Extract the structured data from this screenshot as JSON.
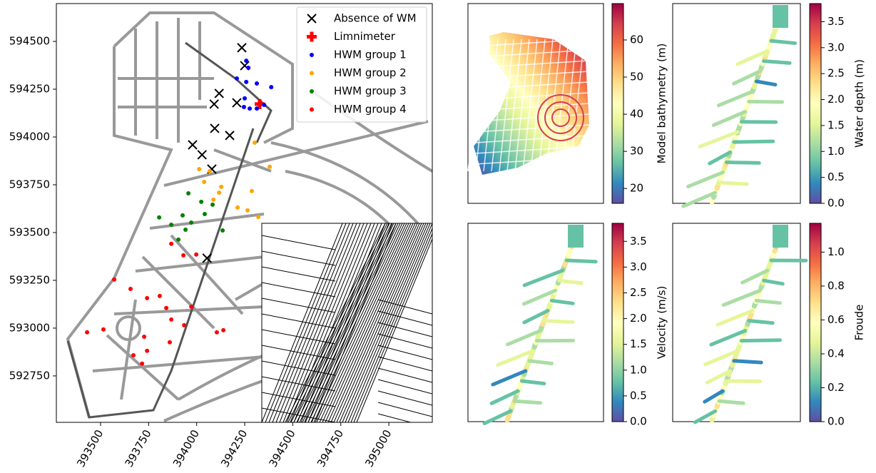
{
  "chart_data": [
    {
      "type": "scatter",
      "legend": "upper right",
      "xlim": [
        393270,
        395226
      ],
      "ylim": [
        592507,
        594698
      ],
      "xticks": [
        393500,
        393750,
        394000,
        394250,
        394500,
        394750,
        395000
      ],
      "yticks": [
        592750,
        593000,
        593250,
        593500,
        593750,
        594000,
        594250,
        594500
      ],
      "series": [
        {
          "name": "Absence of WM",
          "marker": "x",
          "color": "#000000",
          "x": [
            394235,
            394250,
            394117,
            394091,
            394209,
            394094,
            394172,
            393979,
            394028,
            394079,
            394054
          ],
          "values": [
            594467,
            594373,
            594228,
            594172,
            594179,
            594045,
            594008,
            593959,
            593907,
            593832,
            593366
          ]
        },
        {
          "name": "Limnimeter",
          "marker": "P",
          "color": "#ff0000",
          "x": [
            394328
          ],
          "values": [
            594172
          ]
        },
        {
          "name": "HWM group 1",
          "marker": "o",
          "color": "#0000ff",
          "x": [
            394258,
            394269,
            394209,
            394258,
            394313,
            394388,
            394250,
            394246,
            394276,
            394313,
            394351
          ],
          "values": [
            594399,
            594362,
            594306,
            594288,
            594280,
            594261,
            594202,
            594157,
            594149,
            594149,
            594168
          ]
        },
        {
          "name": "HWM group 2",
          "marker": "o",
          "color": "#ffa500",
          "x": [
            394302,
            394013,
            394068,
            394380,
            394039,
            394128,
            394117,
            394287,
            394213,
            394265,
            394321,
            394087
          ],
          "values": [
            593970,
            593832,
            593821,
            593844,
            593765,
            593739,
            593709,
            593717,
            593631,
            593616,
            593582,
            593672
          ]
        },
        {
          "name": "HWM group 3",
          "marker": "o",
          "color": "#008000",
          "x": [
            393957,
            394024,
            394083,
            393805,
            393868,
            393927,
            394042,
            393972,
            393942,
            394135,
            393905
          ],
          "values": [
            593705,
            593661,
            593646,
            593579,
            593541,
            593590,
            593597,
            593552,
            593515,
            593511,
            593463
          ]
        },
        {
          "name": "HWM group 4",
          "marker": "o",
          "color": "#ff0000",
          "x": [
            393868,
            393931,
            393998,
            393571,
            393656,
            393742,
            393808,
            393842,
            393972,
            393868,
            393935,
            394105,
            394139,
            393430,
            393515,
            393727,
            393860,
            393671,
            393742,
            393716
          ],
          "values": [
            593441,
            593381,
            593385,
            593254,
            593205,
            593157,
            593168,
            593105,
            593112,
            593045,
            593015,
            592978,
            592989,
            592978,
            592993,
            592955,
            592926,
            592858,
            592881,
            592814
          ]
        }
      ]
    },
    {
      "type": "map",
      "colormap": "Spectral_r",
      "ylabel": "Model bathymetry (m)",
      "ylim": [
        16,
        69.8
      ],
      "yticks": [
        20,
        30,
        40,
        50,
        60
      ]
    },
    {
      "type": "map",
      "colormap": "Spectral_r",
      "ylabel": "Water depth (m)",
      "ylim": [
        0,
        3.85
      ],
      "yticks": [
        {
          "value": 0,
          "label": "0.0"
        },
        0.5,
        {
          "value": 1,
          "label": "1.0"
        },
        1.5,
        {
          "value": 2,
          "label": "2.0"
        },
        2.5,
        {
          "value": 3,
          "label": "3.0"
        },
        3.5
      ]
    },
    {
      "type": "map",
      "colormap": "Spectral_r",
      "ylabel": "Velocity (m/s)",
      "ylim": [
        0,
        3.85
      ],
      "yticks": [
        {
          "value": 0,
          "label": "0.0"
        },
        0.5,
        {
          "value": 1,
          "label": "1.0"
        },
        1.5,
        {
          "value": 2,
          "label": "2.0"
        },
        2.5,
        {
          "value": 3,
          "label": "3.0"
        },
        3.5
      ]
    },
    {
      "type": "map",
      "colormap": "Spectral_r",
      "ylabel": "Froude",
      "ylim": [
        0,
        1.17
      ],
      "yticks": [
        {
          "value": 0,
          "label": "0.0"
        },
        0.2,
        0.4,
        0.6,
        0.8,
        {
          "value": 1,
          "label": "1.0"
        }
      ]
    }
  ]
}
